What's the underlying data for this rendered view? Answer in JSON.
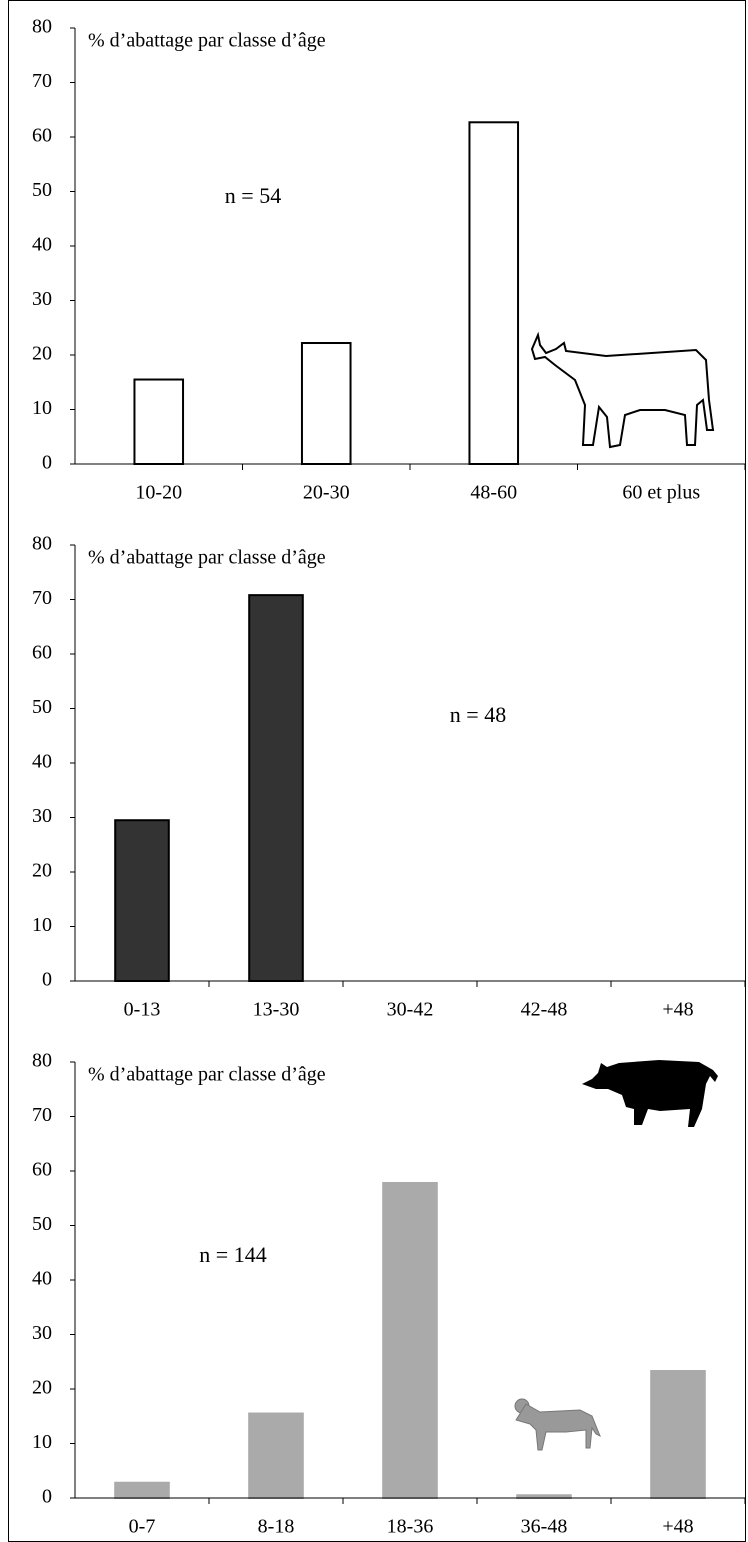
{
  "chart_data": [
    {
      "type": "bar",
      "title": "% d’abattage par classe d’âge",
      "annotation": "n = 54",
      "categories": [
        "10-20",
        "20-30",
        "48-60",
        "60 et plus"
      ],
      "values": [
        15.5,
        22.2,
        62.7,
        0
      ],
      "color": "#ffffff",
      "edgecolor": "#000000",
      "ylim": [
        0,
        80
      ],
      "yticks": [
        0,
        10,
        20,
        30,
        40,
        50,
        60,
        70,
        80
      ]
    },
    {
      "type": "bar",
      "title": "% d’abattage par classe d’âge",
      "annotation": "n = 48",
      "categories": [
        "0-13",
        "13-30",
        "30-42",
        "42-48",
        "+48"
      ],
      "values": [
        29.5,
        70.8,
        0,
        0,
        0
      ],
      "color": "#333333",
      "edgecolor": "#000000",
      "ylim": [
        0,
        80
      ],
      "yticks": [
        0,
        10,
        20,
        30,
        40,
        50,
        60,
        70,
        80
      ]
    },
    {
      "type": "bar",
      "title": "% d’abattage par classe d’âge",
      "annotation": "n = 144",
      "categories": [
        "0-7",
        "8-18",
        "18-36",
        "36-48",
        "+48"
      ],
      "values": [
        2.8,
        15.5,
        57.8,
        0.5,
        23.3
      ],
      "color": "#aaaaaa",
      "edgecolor": "#aaaaaa",
      "ylim": [
        0,
        80
      ],
      "yticks": [
        0,
        10,
        20,
        30,
        40,
        50,
        60,
        70,
        80
      ]
    }
  ]
}
